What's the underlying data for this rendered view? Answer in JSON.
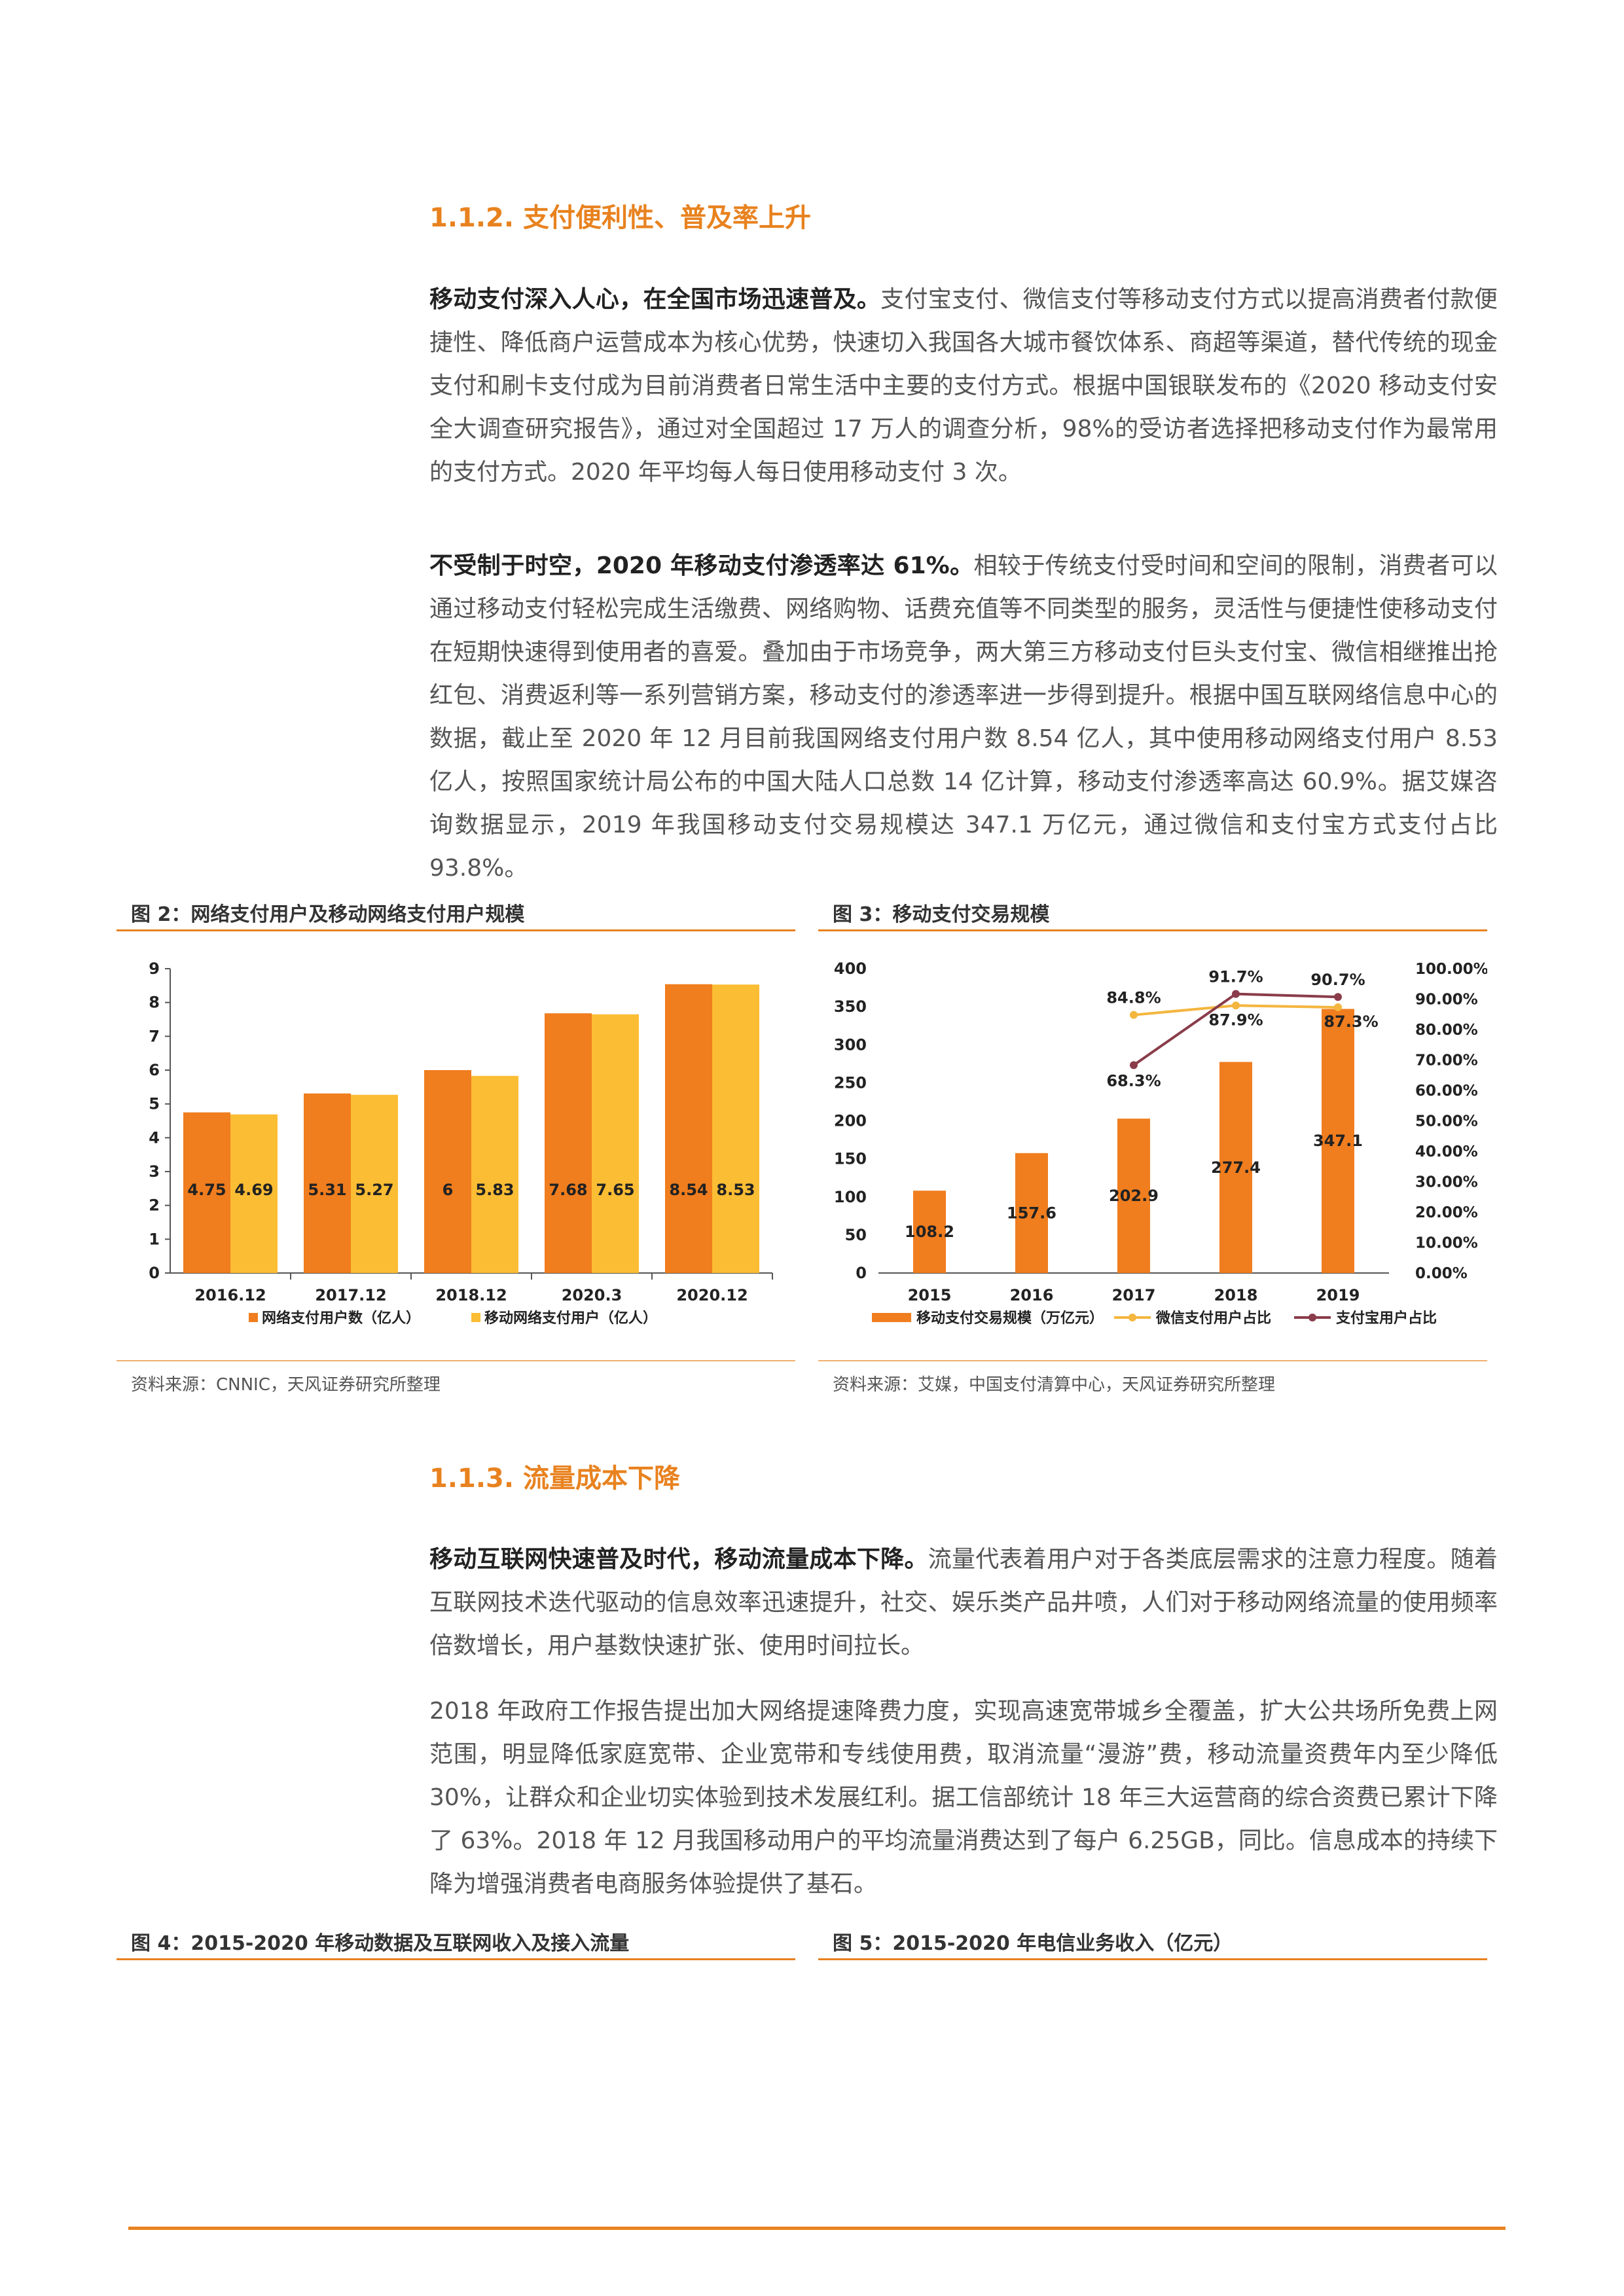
{
  "sections": {
    "s112": "1.1.2. 支付便利性、普及率上升",
    "s113": "1.1.3. 流量成本下降"
  },
  "paragraphs": {
    "p1_bold": "移动支付深入人心，在全国市场迅速普及。",
    "p1_text": "支付宝支付、微信支付等移动支付方式以提高消费者付款便捷性、降低商户运营成本为核心优势，快速切入我国各大城市餐饮体系、商超等渠道，替代传统的现金支付和刷卡支付成为目前消费者日常生活中主要的支付方式。根据中国银联发布的《2020 移动支付安全大调查研究报告》，通过对全国超过 17 万人的调查分析，98%的受访者选择把移动支付作为最常用的支付方式。2020 年平均每人每日使用移动支付 3 次。",
    "p2_bold": "不受制于时空，2020 年移动支付渗透率达 61%。",
    "p2_text": "相较于传统支付受时间和空间的限制，消费者可以通过移动支付轻松完成生活缴费、网络购物、话费充值等不同类型的服务，灵活性与便捷性使移动支付在短期快速得到使用者的喜爱。叠加由于市场竞争，两大第三方移动支付巨头支付宝、微信相继推出抢红包、消费返利等一系列营销方案，移动支付的渗透率进一步得到提升。根据中国互联网络信息中心的数据，截止至 2020 年 12 月目前我国网络支付用户数 8.54 亿人，其中使用移动网络支付用户 8.53 亿人，按照国家统计局公布的中国大陆人口总数 14 亿计算，移动支付渗透率高达 60.9%。据艾媒咨询数据显示，2019 年我国移动支付交易规模达 347.1 万亿元，通过微信和支付宝方式支付占比 93.8%。",
    "p3_bold": "移动互联网快速普及时代，移动流量成本下降。",
    "p3_text": "流量代表着用户对于各类底层需求的注意力程度。随着互联网技术迭代驱动的信息效率迅速提升，社交、娱乐类产品井喷，人们对于移动网络流量的使用频率倍数增长，用户基数快速扩张、使用时间拉长。",
    "p4_text": "2018 年政府工作报告提出加大网络提速降费力度，实现高速宽带城乡全覆盖，扩大公共场所免费上网范围，明显降低家庭宽带、企业宽带和专线使用费，取消流量“漫游”费，移动流量资费年内至少降低 30%，让群众和企业切实体验到技术发展红利。据工信部统计 18 年三大运营商的综合资费已累计下降了 63%。2018 年 12 月我国移动用户的平均流量消费达到了每户 6.25GB，同比。信息成本的持续下降为增强消费者电商服务体验提供了基石。"
  },
  "figures": {
    "fig2_title": "图 2：网络支付用户及移动网络支付用户规模",
    "fig3_title": "图 3：移动支付交易规模",
    "fig4_title": "图 4：2015-2020 年移动数据及互联网收入及接入流量",
    "fig5_title": "图 5：2015-2020 年电信业务收入（亿元）",
    "fig2_source": "资料来源：CNNIC，天风证券研究所整理",
    "fig3_source": "资料来源：艾媒，中国支付清算中心，天风证券研究所整理"
  },
  "colors": {
    "accent": "#e8821f",
    "bar_dark": "#f07d1e",
    "bar_light": "#fbbd34",
    "line_wechat": "#f4b63f",
    "line_alipay": "#8a3c4a"
  },
  "chart_data": [
    {
      "type": "bar",
      "categories": [
        "2016.12",
        "2017.12",
        "2018.12",
        "2020.3",
        "2020.12"
      ],
      "series": [
        {
          "name": "网络支付用户数（亿人）",
          "values": [
            4.75,
            5.31,
            6,
            7.68,
            8.54
          ],
          "labels": [
            "4.75",
            "5.31",
            "6",
            "7.68",
            "8.54"
          ]
        },
        {
          "name": "移动网络支付用户（亿人）",
          "values": [
            4.69,
            5.27,
            5.83,
            7.65,
            8.53
          ],
          "labels": [
            "4.69",
            "5.27",
            "5.83",
            "7.65",
            "8.53"
          ]
        }
      ],
      "y_ticks": [
        "0",
        "1",
        "2",
        "3",
        "4",
        "5",
        "6",
        "7",
        "8",
        "9"
      ],
      "ylim": [
        0,
        9
      ],
      "legend_position": "bottom"
    },
    {
      "type": "bar",
      "categories": [
        "2015",
        "2016",
        "2017",
        "2018",
        "2019"
      ],
      "bars": {
        "name": "移动支付交易规模（万亿元）",
        "values": [
          108.2,
          157.6,
          202.9,
          277.4,
          347.1
        ],
        "labels": [
          "108.2",
          "157.6",
          "202.9",
          "277.4",
          "347.1"
        ]
      },
      "lines": [
        {
          "name": "微信支付用户占比",
          "x": [
            "2017",
            "2018",
            "2019"
          ],
          "values": [
            84.8,
            87.9,
            87.3
          ],
          "labels": [
            "84.8%",
            "87.9%",
            "87.3%"
          ]
        },
        {
          "name": "支付宝用户占比",
          "x": [
            "2017",
            "2018",
            "2019"
          ],
          "values": [
            68.3,
            91.7,
            90.7
          ],
          "labels": [
            "68.3%",
            "91.7%",
            "90.7%"
          ]
        }
      ],
      "y_ticks": [
        "0",
        "50",
        "100",
        "150",
        "200",
        "250",
        "300",
        "350",
        "400"
      ],
      "y2_ticks": [
        "0.00%",
        "10.00%",
        "20.00%",
        "30.00%",
        "40.00%",
        "50.00%",
        "60.00%",
        "70.00%",
        "80.00%",
        "90.00%",
        "100.00%"
      ],
      "ylim": [
        0,
        400
      ],
      "y2lim": [
        0,
        100
      ],
      "legend_position": "bottom"
    }
  ]
}
